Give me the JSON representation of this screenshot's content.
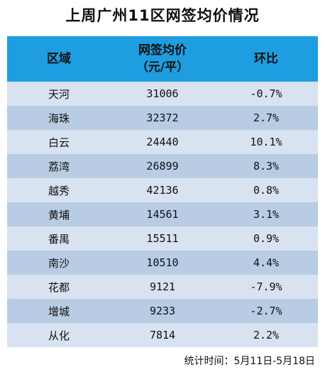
{
  "title": "上周广州11区网签均价情况",
  "table": {
    "headers": [
      "区域",
      "网签均价",
      "（元/平）",
      "环比"
    ],
    "rows": [
      [
        "天河",
        "31006",
        "-0.7%"
      ],
      [
        "海珠",
        "32372",
        "2.7%"
      ],
      [
        "白云",
        "24440",
        "10.1%"
      ],
      [
        "荔湾",
        "26899",
        "8.3%"
      ],
      [
        "越秀",
        "42136",
        "0.8%"
      ],
      [
        "黄埔",
        "14561",
        "3.1%"
      ],
      [
        "番禺",
        "15511",
        "0.9%"
      ],
      [
        "南沙",
        "10510",
        "4.4%"
      ],
      [
        "花都",
        "9121",
        "-7.9%"
      ],
      [
        "增城",
        "9233",
        "-2.7%"
      ],
      [
        "从化",
        "7814",
        "2.2%"
      ]
    ]
  },
  "footer": "统计时间：5月11日-5月18日"
}
